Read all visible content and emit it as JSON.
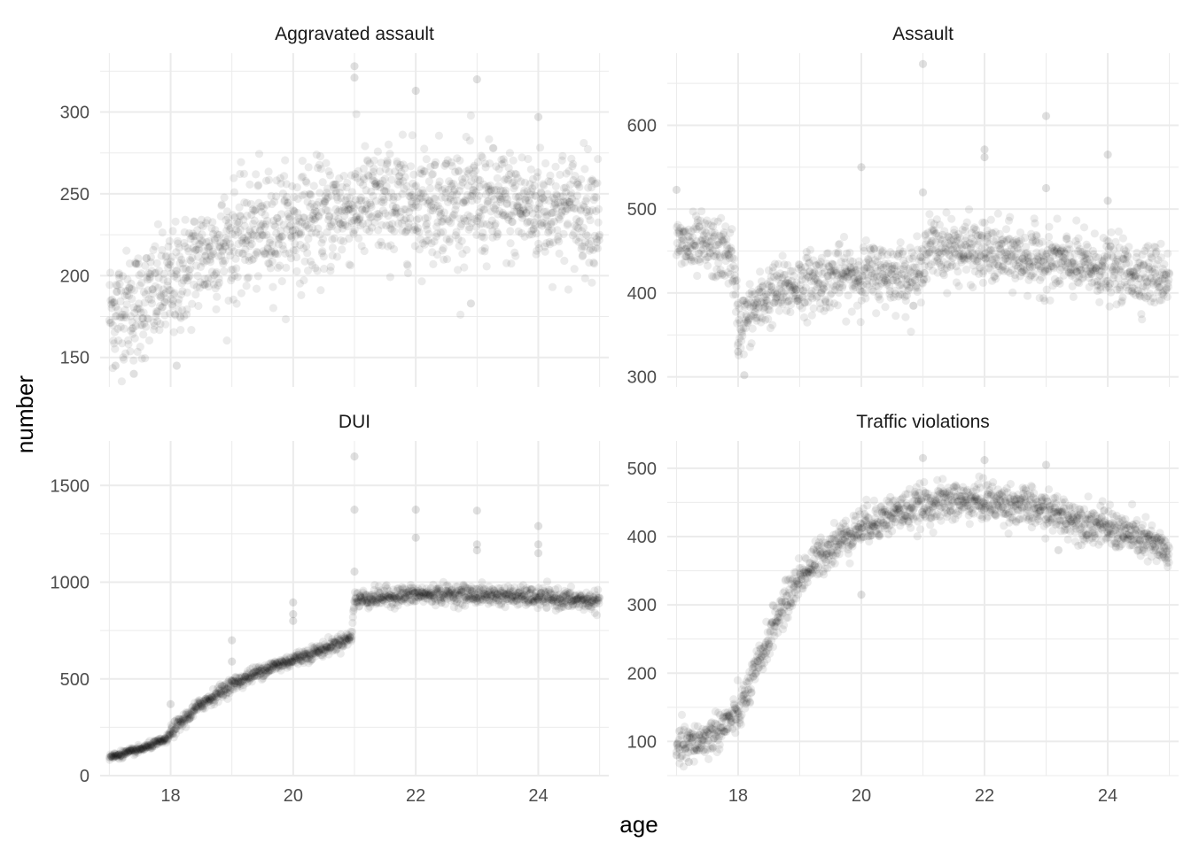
{
  "chart_data": {
    "type": "scatter",
    "layout": "facet-grid-2x2",
    "xlabel": "age",
    "ylabel": "number",
    "grid": true,
    "legend": "none",
    "point_color": "#000000",
    "point_opacity": 0.08,
    "xlim": [
      16.85,
      25.15
    ],
    "x_ticks": [
      18,
      20,
      22,
      24
    ],
    "x_range_data": [
      17,
      25
    ],
    "panels": [
      {
        "title": "Aggravated assault",
        "ylim": [
          132,
          336
        ],
        "y_ticks": [
          150,
          200,
          250,
          300
        ],
        "trend": [
          [
            17.0,
            178
          ],
          [
            17.5,
            183
          ],
          [
            18.0,
            193
          ],
          [
            18.5,
            212
          ],
          [
            19.0,
            221
          ],
          [
            19.5,
            228
          ],
          [
            20.0,
            232
          ],
          [
            20.5,
            235
          ],
          [
            21.0,
            243
          ],
          [
            21.5,
            244
          ],
          [
            22.0,
            245
          ],
          [
            22.5,
            245
          ],
          [
            23.0,
            244
          ],
          [
            23.5,
            243
          ],
          [
            24.0,
            242
          ],
          [
            24.5,
            241
          ],
          [
            25.0,
            240
          ]
        ],
        "noise_sd": 17,
        "outliers": [
          [
            21.0,
            328
          ],
          [
            21.0,
            321
          ],
          [
            22.0,
            313
          ],
          [
            23.0,
            320
          ],
          [
            24.0,
            297
          ],
          [
            22.9,
            183
          ],
          [
            17.4,
            140
          ],
          [
            17.1,
            145
          ],
          [
            18.1,
            145
          ]
        ]
      },
      {
        "title": "Assault",
        "ylim": [
          288,
          686
        ],
        "y_ticks": [
          300,
          400,
          500,
          600
        ],
        "trend": [
          [
            17.0,
            455
          ],
          [
            17.5,
            455
          ],
          [
            17.9,
            445
          ],
          [
            18.0,
            360
          ],
          [
            18.2,
            375
          ],
          [
            18.5,
            398
          ],
          [
            19.0,
            410
          ],
          [
            19.5,
            418
          ],
          [
            20.0,
            422
          ],
          [
            20.5,
            424
          ],
          [
            21.0,
            420
          ],
          [
            21.0,
            455
          ],
          [
            21.5,
            452
          ],
          [
            22.0,
            448
          ],
          [
            22.5,
            443
          ],
          [
            23.0,
            438
          ],
          [
            23.5,
            433
          ],
          [
            24.0,
            428
          ],
          [
            24.5,
            423
          ],
          [
            25.0,
            420
          ]
        ],
        "noise_sd": 18,
        "outliers": [
          [
            21.0,
            673
          ],
          [
            23.0,
            611
          ],
          [
            22.0,
            571
          ],
          [
            22.0,
            562
          ],
          [
            24.0,
            565
          ],
          [
            20.0,
            550
          ],
          [
            23.0,
            525
          ],
          [
            21.0,
            520
          ],
          [
            17.0,
            523
          ],
          [
            24.0,
            510
          ],
          [
            18.1,
            302
          ],
          [
            18.0,
            330
          ]
        ]
      },
      {
        "title": "DUI",
        "ylim": [
          0,
          1730
        ],
        "y_ticks": [
          0,
          500,
          1000,
          1500
        ],
        "trend": [
          [
            17.0,
            95
          ],
          [
            17.5,
            135
          ],
          [
            17.95,
            190
          ],
          [
            18.0,
            225
          ],
          [
            18.5,
            370
          ],
          [
            19.0,
            470
          ],
          [
            19.5,
            545
          ],
          [
            20.0,
            600
          ],
          [
            20.5,
            655
          ],
          [
            20.95,
            715
          ],
          [
            21.0,
            910
          ],
          [
            21.5,
            925
          ],
          [
            22.0,
            935
          ],
          [
            22.5,
            938
          ],
          [
            23.0,
            935
          ],
          [
            23.5,
            930
          ],
          [
            24.0,
            920
          ],
          [
            24.5,
            910
          ],
          [
            25.0,
            900
          ]
        ],
        "noise_sd_early": 9,
        "noise_sd_late": 24,
        "outliers": [
          [
            21.0,
            1650
          ],
          [
            21.0,
            1375
          ],
          [
            22.0,
            1375
          ],
          [
            23.0,
            1370
          ],
          [
            24.0,
            1290
          ],
          [
            22.0,
            1230
          ],
          [
            23.0,
            1195
          ],
          [
            23.0,
            1165
          ],
          [
            24.0,
            1195
          ],
          [
            24.0,
            1150
          ],
          [
            20.0,
            895
          ],
          [
            20.0,
            835
          ],
          [
            20.0,
            800
          ],
          [
            19.0,
            700
          ],
          [
            19.0,
            590
          ],
          [
            18.0,
            370
          ],
          [
            21.0,
            1055
          ]
        ]
      },
      {
        "title": "Traffic violations",
        "ylim": [
          50,
          540
        ],
        "y_ticks": [
          100,
          200,
          300,
          400,
          500
        ],
        "trend": [
          [
            17.0,
            90
          ],
          [
            17.5,
            105
          ],
          [
            18.0,
            140
          ],
          [
            18.3,
            205
          ],
          [
            18.6,
            275
          ],
          [
            19.0,
            340
          ],
          [
            19.5,
            385
          ],
          [
            20.0,
            415
          ],
          [
            20.5,
            433
          ],
          [
            21.0,
            445
          ],
          [
            21.5,
            452
          ],
          [
            22.0,
            452
          ],
          [
            22.5,
            447
          ],
          [
            23.0,
            437
          ],
          [
            23.5,
            425
          ],
          [
            24.0,
            413
          ],
          [
            24.5,
            398
          ],
          [
            25.0,
            375
          ]
        ],
        "noise_sd": 14,
        "outliers": [
          [
            21.0,
            515
          ],
          [
            22.0,
            512
          ],
          [
            23.0,
            505
          ],
          [
            20.0,
            315
          ],
          [
            17.2,
            70
          ],
          [
            17.0,
            80
          ],
          [
            23.2,
            380
          ]
        ]
      }
    ]
  }
}
